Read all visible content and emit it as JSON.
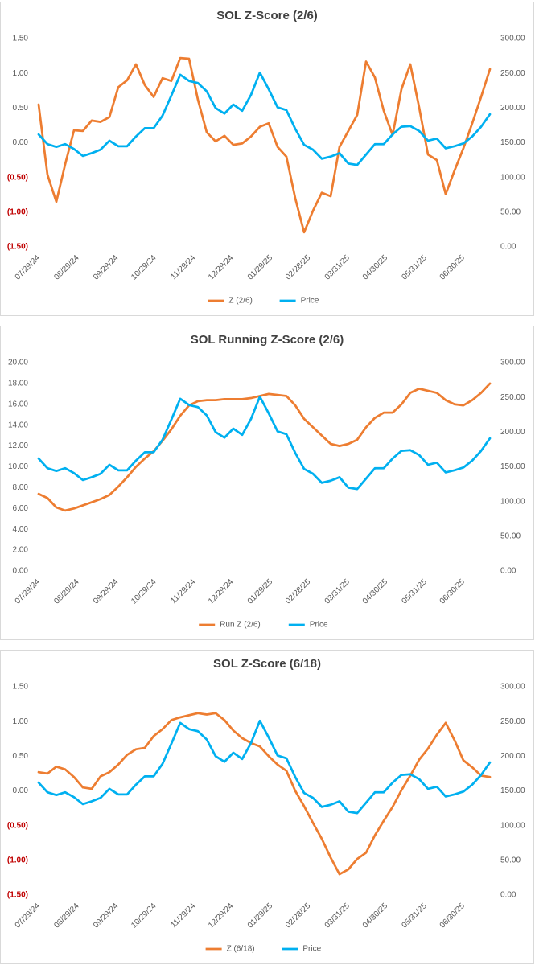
{
  "chart_data": [
    {
      "type": "line",
      "title": "SOL Z-Score (2/6)",
      "x": [
        "07/29/24",
        "08/05/24",
        "08/12/24",
        "08/19/24",
        "08/26/24",
        "09/02/24",
        "09/09/24",
        "09/16/24",
        "09/23/24",
        "09/30/24",
        "10/07/24",
        "10/14/24",
        "10/21/24",
        "10/28/24",
        "11/04/24",
        "11/11/24",
        "11/18/24",
        "11/25/24",
        "12/02/24",
        "12/09/24",
        "12/16/24",
        "12/23/24",
        "12/30/24",
        "01/06/25",
        "01/13/25",
        "01/20/25",
        "01/27/25",
        "02/03/25",
        "02/10/25",
        "02/17/25",
        "02/24/25",
        "03/03/25",
        "03/10/25",
        "03/17/25",
        "03/24/25",
        "03/31/25",
        "04/07/25",
        "04/14/25",
        "04/21/25",
        "04/28/25",
        "05/05/25",
        "05/12/25",
        "05/19/25",
        "05/26/25",
        "06/02/25",
        "06/09/25",
        "06/16/25",
        "06/23/25",
        "06/30/25",
        "07/07/25",
        "07/14/25",
        "07/21/25"
      ],
      "xlim": [
        "07/29/24",
        "07/21/25"
      ],
      "xticks": [
        "07/29/24",
        "08/29/24",
        "09/29/24",
        "10/29/24",
        "11/29/24",
        "12/29/24",
        "01/29/25",
        "02/28/25",
        "03/31/25",
        "04/30/25",
        "05/31/25",
        "06/30/25"
      ],
      "ylim": [
        -1.5,
        1.5
      ],
      "yticks": [
        {
          "value": 1.5,
          "label": "1.50"
        },
        {
          "value": 1,
          "label": "1.00"
        },
        {
          "value": 0.5,
          "label": "0.50"
        },
        {
          "value": 0,
          "label": "0.00"
        },
        {
          "value": -0.5,
          "label": "(0.50)"
        },
        {
          "value": -1,
          "label": "(1.00)"
        },
        {
          "value": -1.5,
          "label": "(1.50)"
        }
      ],
      "y2lim": [
        0,
        300
      ],
      "y2ticks": [
        {
          "value": 300,
          "label": "300.00"
        },
        {
          "value": 250,
          "label": "250.00"
        },
        {
          "value": 200,
          "label": "200.00"
        },
        {
          "value": 150,
          "label": "150.00"
        },
        {
          "value": 100,
          "label": "100.00"
        },
        {
          "value": 50,
          "label": "50.00"
        },
        {
          "value": 0,
          "label": "0.00"
        }
      ],
      "negative_label_color": "#c00000",
      "legend": "bottom",
      "series": [
        {
          "name": "Z (2/6)",
          "color": "#ed7d31",
          "values": [
            0.55,
            -0.46,
            -0.85,
            -0.31,
            0.18,
            0.17,
            0.32,
            0.3,
            0.37,
            0.8,
            0.9,
            1.13,
            0.83,
            0.66,
            0.93,
            0.89,
            1.22,
            1.21,
            0.62,
            0.15,
            0.02,
            0.1,
            -0.03,
            -0.01,
            0.09,
            0.23,
            0.28,
            -0.06,
            -0.2,
            -0.8,
            -1.29,
            -0.98,
            -0.72,
            -0.77,
            -0.06,
            0.17,
            0.4,
            1.17,
            0.94,
            0.46,
            0.11,
            0.77,
            1.13,
            0.51,
            -0.17,
            -0.25,
            -0.74,
            -0.4,
            -0.08,
            0.28,
            0.66,
            1.06
          ]
        },
        {
          "name": "Price",
          "color": "#00b0f0",
          "axis": "y2",
          "values": [
            162,
            148,
            144,
            148,
            141,
            131,
            135,
            140,
            153,
            145,
            145,
            159,
            171,
            171,
            189,
            218,
            248,
            239,
            236,
            224,
            200,
            192,
            205,
            196,
            219,
            251,
            227,
            201,
            197,
            170,
            147,
            140,
            127,
            130,
            135,
            120,
            118,
            133,
            148,
            148,
            162,
            173,
            174,
            167,
            153,
            156,
            142,
            145,
            149,
            159,
            173,
            191
          ]
        }
      ]
    },
    {
      "type": "line",
      "title": "SOL Running Z-Score (2/6)",
      "x": [
        "07/29/24",
        "08/05/24",
        "08/12/24",
        "08/19/24",
        "08/26/24",
        "09/02/24",
        "09/09/24",
        "09/16/24",
        "09/23/24",
        "09/30/24",
        "10/07/24",
        "10/14/24",
        "10/21/24",
        "10/28/24",
        "11/04/24",
        "11/11/24",
        "11/18/24",
        "11/25/24",
        "12/02/24",
        "12/09/24",
        "12/16/24",
        "12/23/24",
        "12/30/24",
        "01/06/25",
        "01/13/25",
        "01/20/25",
        "01/27/25",
        "02/03/25",
        "02/10/25",
        "02/17/25",
        "02/24/25",
        "03/03/25",
        "03/10/25",
        "03/17/25",
        "03/24/25",
        "03/31/25",
        "04/07/25",
        "04/14/25",
        "04/21/25",
        "04/28/25",
        "05/05/25",
        "05/12/25",
        "05/19/25",
        "05/26/25",
        "06/02/25",
        "06/09/25",
        "06/16/25",
        "06/23/25",
        "06/30/25",
        "07/07/25",
        "07/14/25",
        "07/21/25"
      ],
      "xlim": [
        "07/29/24",
        "07/21/25"
      ],
      "xticks": [
        "07/29/24",
        "08/29/24",
        "09/29/24",
        "10/29/24",
        "11/29/24",
        "12/29/24",
        "01/29/25",
        "02/28/25",
        "03/31/25",
        "04/30/25",
        "05/31/25",
        "06/30/25"
      ],
      "ylim": [
        0,
        20
      ],
      "yticks": [
        {
          "value": 20,
          "label": "20.00"
        },
        {
          "value": 18,
          "label": "18.00"
        },
        {
          "value": 16,
          "label": "16.00"
        },
        {
          "value": 14,
          "label": "14.00"
        },
        {
          "value": 12,
          "label": "12.00"
        },
        {
          "value": 10,
          "label": "10.00"
        },
        {
          "value": 8,
          "label": "8.00"
        },
        {
          "value": 6,
          "label": "6.00"
        },
        {
          "value": 4,
          "label": "4.00"
        },
        {
          "value": 2,
          "label": "2.00"
        },
        {
          "value": 0,
          "label": "0.00"
        }
      ],
      "y2lim": [
        0,
        300
      ],
      "y2ticks": [
        {
          "value": 300,
          "label": "300.00"
        },
        {
          "value": 250,
          "label": "250.00"
        },
        {
          "value": 200,
          "label": "200.00"
        },
        {
          "value": 150,
          "label": "150.00"
        },
        {
          "value": 100,
          "label": "100.00"
        },
        {
          "value": 50,
          "label": "50.00"
        },
        {
          "value": 0,
          "label": "0.00"
        }
      ],
      "legend": "bottom",
      "series": [
        {
          "name": "Run Z (2/6)",
          "color": "#ed7d31",
          "values": [
            7.4,
            7.0,
            6.1,
            5.8,
            6.0,
            6.3,
            6.6,
            6.9,
            7.3,
            8.1,
            9.0,
            10.0,
            10.8,
            11.5,
            12.5,
            13.6,
            14.9,
            15.9,
            16.3,
            16.4,
            16.4,
            16.5,
            16.5,
            16.5,
            16.6,
            16.8,
            17.0,
            16.9,
            16.8,
            15.9,
            14.6,
            13.8,
            13.0,
            12.2,
            12.0,
            12.2,
            12.6,
            13.8,
            14.7,
            15.2,
            15.2,
            16.0,
            17.1,
            17.5,
            17.3,
            17.1,
            16.4,
            16.0,
            15.9,
            16.4,
            17.1,
            18.0
          ]
        },
        {
          "name": "Price",
          "color": "#00b0f0",
          "axis": "y2",
          "values": [
            162,
            148,
            144,
            148,
            141,
            131,
            135,
            140,
            153,
            145,
            145,
            159,
            171,
            171,
            189,
            218,
            248,
            239,
            236,
            224,
            200,
            192,
            205,
            196,
            219,
            251,
            227,
            201,
            197,
            170,
            147,
            140,
            127,
            130,
            135,
            120,
            118,
            133,
            148,
            148,
            162,
            173,
            174,
            167,
            153,
            156,
            142,
            145,
            149,
            159,
            173,
            191
          ]
        }
      ]
    },
    {
      "type": "line",
      "title": "SOL Z-Score (6/18)",
      "x": [
        "07/29/24",
        "08/05/24",
        "08/12/24",
        "08/19/24",
        "08/26/24",
        "09/02/24",
        "09/09/24",
        "09/16/24",
        "09/23/24",
        "09/30/24",
        "10/07/24",
        "10/14/24",
        "10/21/24",
        "10/28/24",
        "11/04/24",
        "11/11/24",
        "11/18/24",
        "11/25/24",
        "12/02/24",
        "12/09/24",
        "12/16/24",
        "12/23/24",
        "12/30/24",
        "01/06/25",
        "01/13/25",
        "01/20/25",
        "01/27/25",
        "02/03/25",
        "02/10/25",
        "02/17/25",
        "02/24/25",
        "03/03/25",
        "03/10/25",
        "03/17/25",
        "03/24/25",
        "03/31/25",
        "04/07/25",
        "04/14/25",
        "04/21/25",
        "04/28/25",
        "05/05/25",
        "05/12/25",
        "05/19/25",
        "05/26/25",
        "06/02/25",
        "06/09/25",
        "06/16/25",
        "06/23/25",
        "06/30/25",
        "07/07/25",
        "07/14/25",
        "07/21/25"
      ],
      "xlim": [
        "07/29/24",
        "07/21/25"
      ],
      "xticks": [
        "07/29/24",
        "08/29/24",
        "09/29/24",
        "10/29/24",
        "11/29/24",
        "12/29/24",
        "01/29/25",
        "02/28/25",
        "03/31/25",
        "04/30/25",
        "05/31/25",
        "06/30/25"
      ],
      "ylim": [
        -1.5,
        1.5
      ],
      "yticks": [
        {
          "value": 1.5,
          "label": "1.50"
        },
        {
          "value": 1,
          "label": "1.00"
        },
        {
          "value": 0.5,
          "label": "0.50"
        },
        {
          "value": 0,
          "label": "0.00"
        },
        {
          "value": -0.5,
          "label": "(0.50)"
        },
        {
          "value": -1,
          "label": "(1.00)"
        },
        {
          "value": -1.5,
          "label": "(1.50)"
        }
      ],
      "y2lim": [
        0,
        300
      ],
      "y2ticks": [
        {
          "value": 300,
          "label": "300.00"
        },
        {
          "value": 250,
          "label": "250.00"
        },
        {
          "value": 200,
          "label": "200.00"
        },
        {
          "value": 150,
          "label": "150.00"
        },
        {
          "value": 100,
          "label": "100.00"
        },
        {
          "value": 50,
          "label": "50.00"
        },
        {
          "value": 0,
          "label": "0.00"
        }
      ],
      "negative_label_color": "#c00000",
      "legend": "bottom",
      "series": [
        {
          "name": "Z (6/18)",
          "color": "#ed7d31",
          "values": [
            0.27,
            0.25,
            0.35,
            0.31,
            0.2,
            0.05,
            0.03,
            0.21,
            0.27,
            0.38,
            0.52,
            0.6,
            0.62,
            0.79,
            0.89,
            1.02,
            1.06,
            1.09,
            1.12,
            1.1,
            1.12,
            1.02,
            0.87,
            0.76,
            0.69,
            0.64,
            0.5,
            0.38,
            0.29,
            0.0,
            -0.22,
            -0.46,
            -0.69,
            -0.96,
            -1.2,
            -1.13,
            -0.98,
            -0.89,
            -0.64,
            -0.43,
            -0.23,
            0.01,
            0.22,
            0.45,
            0.61,
            0.81,
            0.98,
            0.73,
            0.44,
            0.34,
            0.22,
            0.2
          ]
        },
        {
          "name": "Price",
          "color": "#00b0f0",
          "axis": "y2",
          "values": [
            162,
            148,
            144,
            148,
            141,
            131,
            135,
            140,
            153,
            145,
            145,
            159,
            171,
            171,
            189,
            218,
            248,
            239,
            236,
            224,
            200,
            192,
            205,
            196,
            219,
            251,
            227,
            201,
            197,
            170,
            147,
            140,
            127,
            130,
            135,
            120,
            118,
            133,
            148,
            148,
            162,
            173,
            174,
            167,
            153,
            156,
            142,
            145,
            149,
            159,
            173,
            191
          ]
        }
      ]
    }
  ]
}
